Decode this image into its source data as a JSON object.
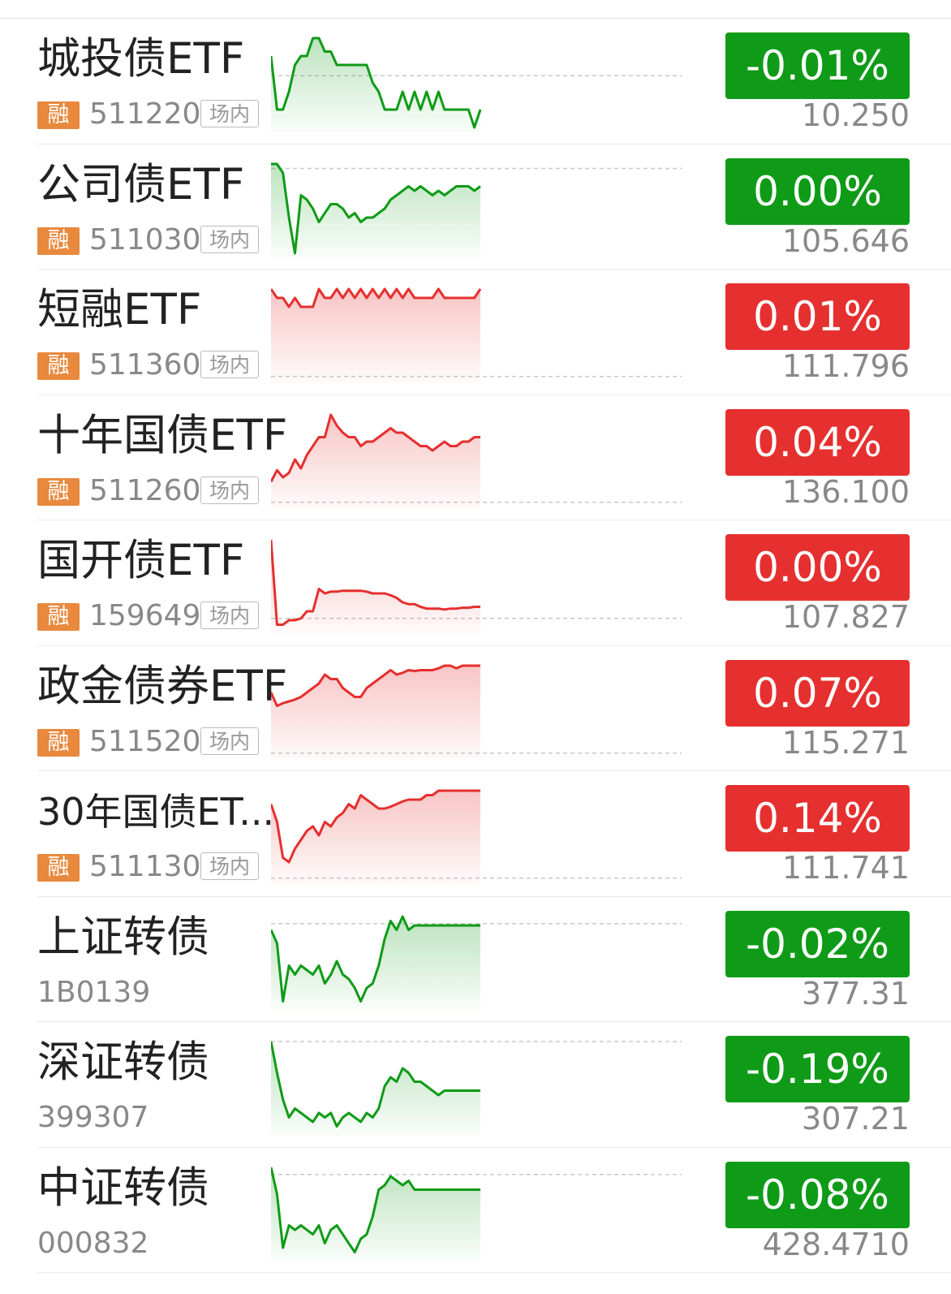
{
  "colors": {
    "up": "#e5302f",
    "down": "#0f9b17",
    "tag": "#e8893d"
  },
  "rows": [
    {
      "name": "城投债ETF",
      "margin": "融",
      "code": "511220",
      "venue": "场内",
      "change": "-0.01%",
      "price": "10.250",
      "dir": "down",
      "ref": 0.42,
      "series": [
        0.2,
        0.8,
        0.8,
        0.6,
        0.3,
        0.2,
        0.2,
        0.0,
        0.0,
        0.15,
        0.15,
        0.3,
        0.3,
        0.3,
        0.3,
        0.3,
        0.3,
        0.5,
        0.6,
        0.8,
        0.8,
        0.8,
        0.6,
        0.8,
        0.6,
        0.8,
        0.6,
        0.8,
        0.6,
        0.8,
        0.8,
        0.8,
        0.8,
        0.8,
        1.0,
        0.8
      ]
    },
    {
      "name": "公司债ETF",
      "margin": "融",
      "code": "511030",
      "venue": "场内",
      "change": "0.00%",
      "price": "105.646",
      "dir": "down",
      "ref": 0.05,
      "series": [
        0.0,
        0.0,
        0.1,
        0.6,
        1.0,
        0.35,
        0.4,
        0.5,
        0.65,
        0.55,
        0.45,
        0.45,
        0.5,
        0.6,
        0.55,
        0.65,
        0.6,
        0.6,
        0.55,
        0.5,
        0.4,
        0.35,
        0.3,
        0.25,
        0.3,
        0.25,
        0.3,
        0.35,
        0.3,
        0.35,
        0.3,
        0.25,
        0.25,
        0.25,
        0.3,
        0.25
      ]
    },
    {
      "name": "短融ETF",
      "margin": "融",
      "code": "511360",
      "venue": "场内",
      "change": "0.01%",
      "price": "111.796",
      "dir": "up",
      "ref": 0.98,
      "series": [
        0.0,
        0.1,
        0.1,
        0.2,
        0.1,
        0.2,
        0.2,
        0.2,
        0.0,
        0.1,
        0.1,
        0.0,
        0.1,
        0.0,
        0.1,
        0.0,
        0.1,
        0.0,
        0.1,
        0.0,
        0.1,
        0.0,
        0.1,
        0.0,
        0.1,
        0.1,
        0.1,
        0.1,
        0.0,
        0.1,
        0.1,
        0.1,
        0.1,
        0.1,
        0.1,
        0.0
      ]
    },
    {
      "name": "十年国债ETF",
      "margin": "融",
      "code": "511260",
      "venue": "场内",
      "change": "0.04%",
      "price": "136.100",
      "dir": "up",
      "ref": 0.98,
      "series": [
        0.75,
        0.62,
        0.7,
        0.65,
        0.5,
        0.6,
        0.45,
        0.35,
        0.25,
        0.25,
        0.0,
        0.12,
        0.2,
        0.25,
        0.25,
        0.35,
        0.3,
        0.3,
        0.25,
        0.2,
        0.15,
        0.2,
        0.2,
        0.25,
        0.3,
        0.35,
        0.35,
        0.4,
        0.35,
        0.3,
        0.35,
        0.35,
        0.3,
        0.3,
        0.25,
        0.25
      ]
    },
    {
      "name": "国开债ETF",
      "margin": "融",
      "code": "159649",
      "venue": "场内",
      "change": "0.00%",
      "price": "107.827",
      "dir": "up",
      "ref": 0.88,
      "series": [
        0.0,
        0.95,
        0.95,
        0.9,
        0.9,
        0.88,
        0.8,
        0.8,
        0.55,
        0.6,
        0.58,
        0.58,
        0.57,
        0.57,
        0.57,
        0.57,
        0.58,
        0.6,
        0.6,
        0.6,
        0.62,
        0.65,
        0.7,
        0.72,
        0.72,
        0.75,
        0.77,
        0.77,
        0.77,
        0.78,
        0.77,
        0.77,
        0.76,
        0.76,
        0.75,
        0.75
      ]
    },
    {
      "name": "政金债券ETF",
      "margin": "融",
      "code": "511520",
      "venue": "场内",
      "change": "0.07%",
      "price": "115.271",
      "dir": "up",
      "ref": 0.98,
      "series": [
        0.3,
        0.45,
        0.42,
        0.4,
        0.38,
        0.35,
        0.3,
        0.25,
        0.2,
        0.1,
        0.15,
        0.15,
        0.25,
        0.3,
        0.35,
        0.35,
        0.25,
        0.2,
        0.15,
        0.1,
        0.05,
        0.1,
        0.08,
        0.05,
        0.06,
        0.05,
        0.05,
        0.05,
        0.03,
        0.0,
        0.0,
        0.03,
        0.0,
        0.0,
        0.0,
        0.0
      ]
    },
    {
      "name": "30年国债ET...",
      "margin": "融",
      "code": "511130",
      "venue": "场内",
      "change": "0.14%",
      "price": "111.741",
      "dir": "up",
      "ref": 0.98,
      "series": [
        0.15,
        0.35,
        0.75,
        0.8,
        0.65,
        0.55,
        0.45,
        0.4,
        0.5,
        0.35,
        0.4,
        0.3,
        0.25,
        0.15,
        0.2,
        0.05,
        0.1,
        0.15,
        0.2,
        0.2,
        0.18,
        0.15,
        0.12,
        0.1,
        0.1,
        0.1,
        0.05,
        0.05,
        0.0,
        0.0,
        0.0,
        0.0,
        0.0,
        0.0,
        0.0,
        0.0
      ]
    },
    {
      "name": "上证转债",
      "margin": "",
      "code": "1B0139",
      "venue": "",
      "change": "-0.02%",
      "price": "377.31",
      "dir": "down",
      "ref": 0.08,
      "series": [
        0.15,
        0.3,
        0.95,
        0.55,
        0.65,
        0.55,
        0.6,
        0.65,
        0.55,
        0.75,
        0.65,
        0.5,
        0.65,
        0.7,
        0.8,
        0.95,
        0.8,
        0.75,
        0.55,
        0.25,
        0.05,
        0.15,
        0.0,
        0.15,
        0.1,
        0.1,
        0.1,
        0.1,
        0.1,
        0.1,
        0.1,
        0.1,
        0.1,
        0.1,
        0.1,
        0.1
      ]
    },
    {
      "name": "深证转债",
      "margin": "",
      "code": "399307",
      "venue": "",
      "change": "-0.19%",
      "price": "307.21",
      "dir": "down",
      "ref": 0.0,
      "series": [
        0.0,
        0.35,
        0.65,
        0.85,
        0.75,
        0.8,
        0.85,
        0.9,
        0.8,
        0.85,
        0.8,
        0.95,
        0.85,
        0.8,
        0.85,
        0.9,
        0.8,
        0.85,
        0.75,
        0.5,
        0.4,
        0.45,
        0.3,
        0.35,
        0.45,
        0.45,
        0.5,
        0.55,
        0.6,
        0.55,
        0.55,
        0.55,
        0.55,
        0.55,
        0.55,
        0.55
      ]
    },
    {
      "name": "中证转债",
      "margin": "",
      "code": "000832",
      "venue": "",
      "change": "-0.08%",
      "price": "428.4710",
      "dir": "down",
      "ref": 0.08,
      "series": [
        0.0,
        0.3,
        0.9,
        0.65,
        0.7,
        0.65,
        0.7,
        0.75,
        0.65,
        0.85,
        0.7,
        0.65,
        0.75,
        0.85,
        0.95,
        0.8,
        0.75,
        0.55,
        0.25,
        0.2,
        0.1,
        0.15,
        0.2,
        0.15,
        0.25,
        0.25,
        0.25,
        0.25,
        0.25,
        0.25,
        0.25,
        0.25,
        0.25,
        0.25,
        0.25,
        0.25
      ]
    }
  ]
}
